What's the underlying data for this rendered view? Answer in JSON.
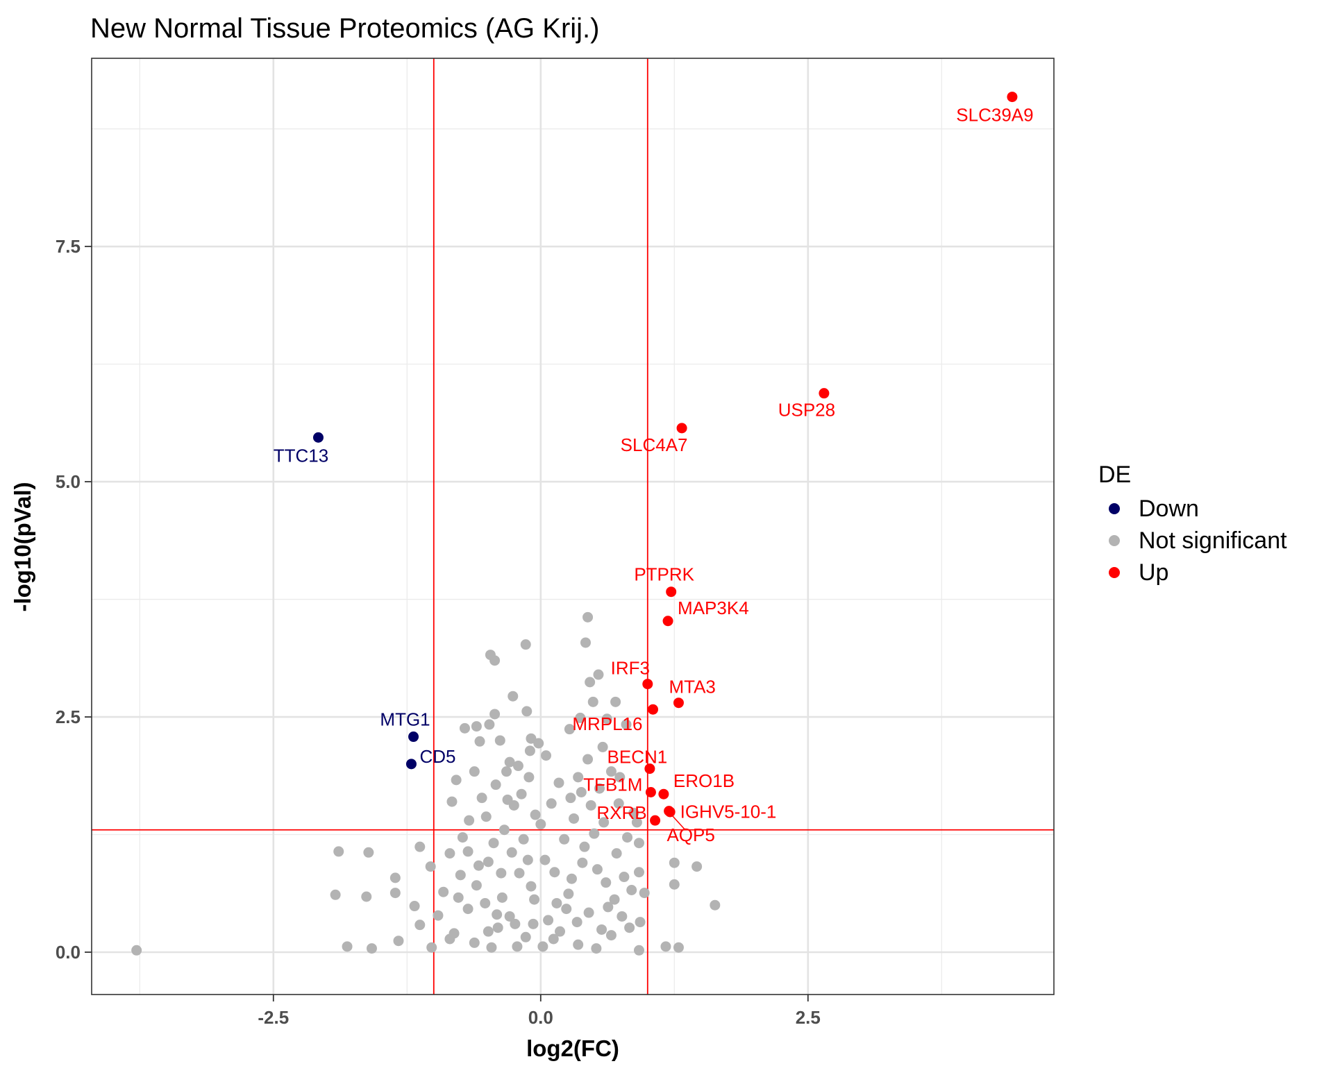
{
  "chart_data": {
    "type": "scatter",
    "title": "New Normal Tissue Proteomics (AG Krij.)",
    "xlabel": "log2(FC)",
    "ylabel": "-log10(pVal)",
    "xlim": [
      -4.2,
      4.8
    ],
    "ylim": [
      -0.45,
      9.5
    ],
    "x_ticks": [
      -2.5,
      0.0,
      2.5
    ],
    "x_tick_labels": [
      "-2.5",
      "0.0",
      "2.5"
    ],
    "y_ticks": [
      0.0,
      2.5,
      5.0,
      7.5
    ],
    "y_tick_labels": [
      "0.0",
      "2.5",
      "5.0",
      "7.5"
    ],
    "grid": true,
    "thresholds": {
      "x": [
        -1,
        1
      ],
      "y": 1.3,
      "color": "#ff0000"
    },
    "legend": {
      "title": "DE",
      "position": "right",
      "entries": [
        {
          "label": "Down",
          "color": "#000066"
        },
        {
          "label": "Not significant",
          "color": "#b3b3b3"
        },
        {
          "label": "Up",
          "color": "#ff0000"
        }
      ]
    },
    "series": [
      {
        "name": "Down",
        "color": "#000066",
        "points": [
          {
            "x": -2.08,
            "y": 5.47,
            "label": "TTC13"
          },
          {
            "x": -1.19,
            "y": 2.29,
            "label": "MTG1"
          },
          {
            "x": -1.21,
            "y": 2.0,
            "label": "CD5"
          }
        ]
      },
      {
        "name": "Up",
        "color": "#ff0000",
        "points": [
          {
            "x": 4.41,
            "y": 9.09,
            "label": "SLC39A9"
          },
          {
            "x": 2.65,
            "y": 5.94,
            "label": "USP28"
          },
          {
            "x": 1.32,
            "y": 5.57,
            "label": "SLC4A7"
          },
          {
            "x": 1.22,
            "y": 3.83,
            "label": "PTPRK"
          },
          {
            "x": 1.19,
            "y": 3.52,
            "label": "MAP3K4"
          },
          {
            "x": 1.0,
            "y": 2.85,
            "label": "IRF3"
          },
          {
            "x": 1.29,
            "y": 2.65,
            "label": "MTA3"
          },
          {
            "x": 1.05,
            "y": 2.58,
            "label": "MRPL16"
          },
          {
            "x": 1.02,
            "y": 1.95,
            "label": "BECN1"
          },
          {
            "x": 1.03,
            "y": 1.7,
            "label": "TFB1M"
          },
          {
            "x": 1.15,
            "y": 1.68,
            "label": "ERO1B"
          },
          {
            "x": 1.2,
            "y": 1.5,
            "label": "IGHV5-10-1"
          },
          {
            "x": 1.07,
            "y": 1.4,
            "label": "RXRB"
          },
          {
            "x": 1.21,
            "y": 1.49,
            "label": "AQP5"
          }
        ]
      },
      {
        "name": "Not significant",
        "color": "#b3b3b3",
        "points": [
          {
            "x": -3.78,
            "y": 0.02
          },
          {
            "x": -1.89,
            "y": 1.07
          },
          {
            "x": -1.61,
            "y": 1.06
          },
          {
            "x": -1.92,
            "y": 0.61
          },
          {
            "x": -1.63,
            "y": 0.59
          },
          {
            "x": -1.36,
            "y": 0.79
          },
          {
            "x": -1.36,
            "y": 0.63
          },
          {
            "x": -1.81,
            "y": 0.06
          },
          {
            "x": -1.58,
            "y": 0.04
          },
          {
            "x": -1.33,
            "y": 0.12
          },
          {
            "x": -1.13,
            "y": 0.29
          },
          {
            "x": -1.02,
            "y": 0.05
          },
          {
            "x": -1.18,
            "y": 0.49
          },
          {
            "x": -1.03,
            "y": 0.91
          },
          {
            "x": -0.83,
            "y": 1.6
          },
          {
            "x": -0.79,
            "y": 1.83
          },
          {
            "x": -0.81,
            "y": 0.2
          },
          {
            "x": -1.13,
            "y": 1.12
          },
          {
            "x": -0.47,
            "y": 3.16
          },
          {
            "x": -0.43,
            "y": 3.1
          },
          {
            "x": -0.14,
            "y": 3.27
          },
          {
            "x": 0.44,
            "y": 3.56
          },
          {
            "x": 0.42,
            "y": 3.29
          },
          {
            "x": 0.54,
            "y": 2.95
          },
          {
            "x": -0.26,
            "y": 2.72
          },
          {
            "x": 0.46,
            "y": 2.87
          },
          {
            "x": -0.43,
            "y": 2.53
          },
          {
            "x": -0.48,
            "y": 2.42
          },
          {
            "x": -0.13,
            "y": 2.56
          },
          {
            "x": -0.6,
            "y": 2.4
          },
          {
            "x": -0.71,
            "y": 2.38
          },
          {
            "x": 0.37,
            "y": 2.49
          },
          {
            "x": 0.49,
            "y": 2.66
          },
          {
            "x": 0.7,
            "y": 2.66
          },
          {
            "x": 0.62,
            "y": 2.48
          },
          {
            "x": -0.09,
            "y": 2.27
          },
          {
            "x": 0.05,
            "y": 2.09
          },
          {
            "x": 0.27,
            "y": 2.37
          },
          {
            "x": 0.8,
            "y": 2.42
          },
          {
            "x": -0.57,
            "y": 2.24
          },
          {
            "x": -0.38,
            "y": 2.25
          },
          {
            "x": 0.73,
            "y": 1.58
          },
          {
            "x": 0.9,
            "y": 1.38
          },
          {
            "x": 0.92,
            "y": 1.16
          },
          {
            "x": 0.92,
            "y": 0.85
          },
          {
            "x": 1.25,
            "y": 0.95
          },
          {
            "x": 1.46,
            "y": 0.91
          },
          {
            "x": 1.63,
            "y": 0.5
          },
          {
            "x": 1.25,
            "y": 0.72
          },
          {
            "x": 0.97,
            "y": 0.63
          },
          {
            "x": 0.93,
            "y": 0.32
          },
          {
            "x": 0.92,
            "y": 0.02
          },
          {
            "x": 1.17,
            "y": 0.06
          },
          {
            "x": 1.29,
            "y": 0.05
          },
          {
            "x": -0.73,
            "y": 1.22
          },
          {
            "x": -0.68,
            "y": 1.07
          },
          {
            "x": -0.75,
            "y": 0.82
          },
          {
            "x": -0.6,
            "y": 0.71
          },
          {
            "x": -0.52,
            "y": 0.52
          },
          {
            "x": -0.49,
            "y": 0.96
          },
          {
            "x": -0.42,
            "y": 1.78
          },
          {
            "x": -0.32,
            "y": 1.92
          },
          {
            "x": -0.25,
            "y": 1.56
          },
          {
            "x": -0.36,
            "y": 0.58
          },
          {
            "x": -0.4,
            "y": 0.26
          },
          {
            "x": -0.27,
            "y": 1.06
          },
          {
            "x": -0.18,
            "y": 1.68
          },
          {
            "x": -0.11,
            "y": 1.86
          },
          {
            "x": -0.05,
            "y": 1.46
          },
          {
            "x": -0.29,
            "y": 0.38
          },
          {
            "x": -0.2,
            "y": 0.84
          },
          {
            "x": -0.14,
            "y": 0.16
          },
          {
            "x": -0.06,
            "y": 0.56
          },
          {
            "x": 0.02,
            "y": 0.06
          },
          {
            "x": 0.07,
            "y": 0.34
          },
          {
            "x": 0.13,
            "y": 0.85
          },
          {
            "x": 0.18,
            "y": 0.22
          },
          {
            "x": 0.26,
            "y": 0.62
          },
          {
            "x": 0.31,
            "y": 1.42
          },
          {
            "x": 0.35,
            "y": 1.86
          },
          {
            "x": 0.39,
            "y": 0.95
          },
          {
            "x": 0.45,
            "y": 0.42
          },
          {
            "x": 0.5,
            "y": 1.26
          },
          {
            "x": 0.55,
            "y": 1.74
          },
          {
            "x": 0.61,
            "y": 0.74
          },
          {
            "x": 0.66,
            "y": 0.18
          },
          {
            "x": 0.71,
            "y": 1.05
          },
          {
            "x": 0.76,
            "y": 0.38
          },
          {
            "x": 0.81,
            "y": 1.22
          },
          {
            "x": 0.85,
            "y": 0.66
          },
          {
            "x": 0.58,
            "y": 2.18
          },
          {
            "x": 0.44,
            "y": 2.05
          },
          {
            "x": 0.66,
            "y": 1.92
          },
          {
            "x": -0.62,
            "y": 1.92
          },
          {
            "x": -0.55,
            "y": 1.64
          },
          {
            "x": -0.67,
            "y": 1.4
          },
          {
            "x": -0.85,
            "y": 1.05
          },
          {
            "x": -0.91,
            "y": 0.64
          },
          {
            "x": -0.96,
            "y": 0.39
          },
          {
            "x": -0.85,
            "y": 0.14
          },
          {
            "x": -0.62,
            "y": 0.1
          },
          {
            "x": -0.46,
            "y": 0.05
          },
          {
            "x": 0.35,
            "y": 0.08
          },
          {
            "x": 0.52,
            "y": 0.04
          },
          {
            "x": 0.63,
            "y": 0.48
          },
          {
            "x": 0.78,
            "y": 0.8
          },
          {
            "x": 0.87,
            "y": 1.48
          },
          {
            "x": 0.74,
            "y": 1.86
          },
          {
            "x": -0.02,
            "y": 2.22
          },
          {
            "x": 0.0,
            "y": 1.36
          },
          {
            "x": 0.04,
            "y": 0.98
          },
          {
            "x": -0.09,
            "y": 0.7
          },
          {
            "x": -0.24,
            "y": 0.3
          },
          {
            "x": 0.22,
            "y": 1.2
          },
          {
            "x": 0.28,
            "y": 1.64
          },
          {
            "x": 0.34,
            "y": 0.32
          },
          {
            "x": 0.41,
            "y": 1.12
          },
          {
            "x": 0.47,
            "y": 1.56
          },
          {
            "x": 0.53,
            "y": 0.88
          },
          {
            "x": 0.59,
            "y": 1.38
          },
          {
            "x": -0.34,
            "y": 1.3
          },
          {
            "x": -0.44,
            "y": 1.16
          },
          {
            "x": -0.51,
            "y": 1.44
          },
          {
            "x": -0.58,
            "y": 0.92
          },
          {
            "x": -0.68,
            "y": 0.46
          },
          {
            "x": -0.77,
            "y": 0.58
          },
          {
            "x": -0.29,
            "y": 2.02
          },
          {
            "x": -0.21,
            "y": 1.98
          },
          {
            "x": -0.1,
            "y": 2.14
          },
          {
            "x": 0.17,
            "y": 1.8
          },
          {
            "x": 0.1,
            "y": 1.58
          },
          {
            "x": 0.24,
            "y": 0.46
          },
          {
            "x": -0.16,
            "y": 1.2
          },
          {
            "x": -0.07,
            "y": 0.3
          },
          {
            "x": 0.12,
            "y": 0.14
          },
          {
            "x": -0.37,
            "y": 0.84
          },
          {
            "x": -0.49,
            "y": 0.22
          },
          {
            "x": 0.69,
            "y": 0.56
          },
          {
            "x": 0.83,
            "y": 0.26
          },
          {
            "x": 0.57,
            "y": 0.24
          },
          {
            "x": -0.22,
            "y": 0.06
          },
          {
            "x": -0.31,
            "y": 1.62
          },
          {
            "x": 0.38,
            "y": 1.7
          },
          {
            "x": 0.29,
            "y": 0.78
          },
          {
            "x": -0.12,
            "y": 0.98
          },
          {
            "x": 0.15,
            "y": 0.52
          },
          {
            "x": -0.41,
            "y": 0.4
          }
        ]
      }
    ]
  }
}
